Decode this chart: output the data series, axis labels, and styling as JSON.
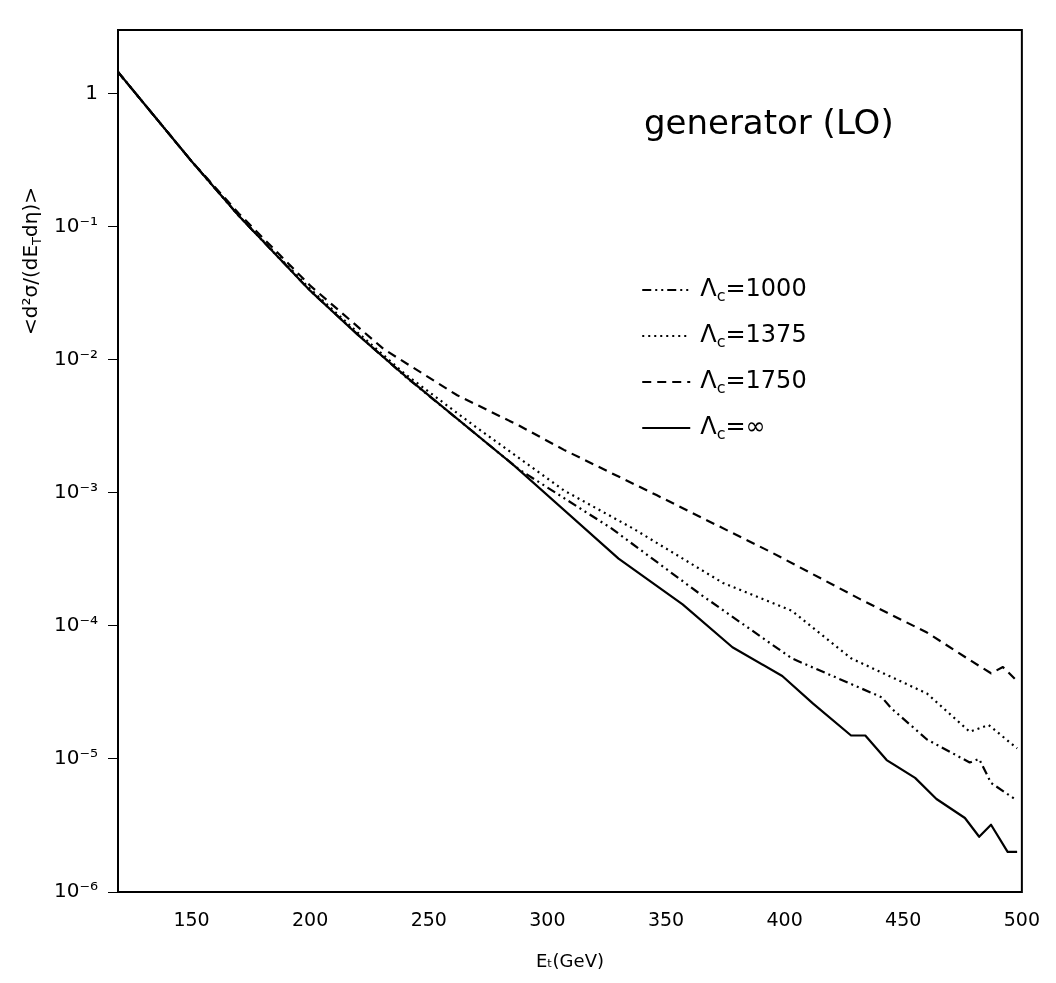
{
  "chart_data": {
    "type": "line",
    "title": "generator (LO)",
    "xlabel": "Eₜ(GeV)",
    "ylabel": "<d²σ/(dE$_{T}$dη)>",
    "log": "y",
    "grid": false,
    "legend": "right",
    "marker": "none",
    "xlim": [
      119,
      500
    ],
    "xticks": [
      150,
      200,
      250,
      300,
      350,
      400,
      450,
      500
    ],
    "ylim": [
      1e-06,
      3
    ],
    "yticks": [
      {
        "value": 1e-06,
        "label": "10⁻⁶"
      },
      {
        "value": 1e-05,
        "label": "10⁻⁵"
      },
      {
        "value": 0.0001,
        "label": "10⁻⁴"
      },
      {
        "value": 0.001,
        "label": "10⁻³"
      },
      {
        "value": 0.01,
        "label": "10⁻²"
      },
      {
        "value": 0.1,
        "label": "10⁻¹"
      },
      1
    ],
    "series": [
      {
        "name": "Λ$_{c}$=1000",
        "color": "#000000",
        "line_style": "dashdot",
        "x": [
          119,
          150,
          170,
          200,
          220,
          240,
          288,
          327,
          365,
          403,
          441,
          445,
          460,
          478,
          482,
          487,
          497
        ],
        "values": [
          1.45,
          0.31,
          0.12,
          0.033,
          0.0155,
          0.0075,
          0.0015,
          0.00054,
          0.00017,
          5.7e-05,
          2.9e-05,
          2.4e-05,
          1.4e-05,
          9.4e-06,
          1e-05,
          6.6e-06,
          5e-06
        ]
      },
      {
        "name": "Λ$_{c}$=1375",
        "color": "#000000",
        "line_style": "dotted",
        "x": [
          119,
          150,
          170,
          200,
          220,
          240,
          269,
          307,
          336,
          374,
          403,
          428,
          460,
          478,
          486,
          498
        ],
        "values": [
          1.45,
          0.31,
          0.12,
          0.034,
          0.016,
          0.0078,
          0.0032,
          0.00104,
          0.00054,
          0.00021,
          0.00013,
          5.7e-05,
          3.1e-05,
          1.6e-05,
          1.8e-05,
          1.2e-05
        ]
      },
      {
        "name": "Λ$_{c}$=1750",
        "color": "#000000",
        "line_style": "dashed",
        "x": [
          119,
          150,
          170,
          200,
          231,
          262,
          288,
          307,
          346,
          365,
          394,
          432,
          460,
          479,
          487,
          492,
          497
        ],
        "values": [
          1.45,
          0.31,
          0.125,
          0.036,
          0.012,
          0.0054,
          0.0032,
          0.0021,
          0.00096,
          0.00065,
          0.00036,
          0.000158,
          8.9e-05,
          5.4e-05,
          4.4e-05,
          4.9e-05,
          4e-05
        ]
      },
      {
        "name": "Λ$_{c}$=∞",
        "color": "#000000",
        "line_style": "solid",
        "x": [
          119,
          150,
          170,
          200,
          220,
          241,
          286,
          330,
          357,
          378,
          399,
          412,
          428,
          434,
          443,
          455,
          464,
          476,
          482,
          487,
          494,
          498
        ],
        "values": [
          1.45,
          0.31,
          0.12,
          0.033,
          0.0154,
          0.0073,
          0.0016,
          0.00032,
          0.000145,
          6.9e-05,
          4.2e-05,
          2.6e-05,
          1.5e-05,
          1.5e-05,
          9.8e-06,
          7.2e-06,
          5e-06,
          3.6e-06,
          2.6e-06,
          3.2e-06,
          2e-06,
          2e-06
        ]
      }
    ]
  }
}
